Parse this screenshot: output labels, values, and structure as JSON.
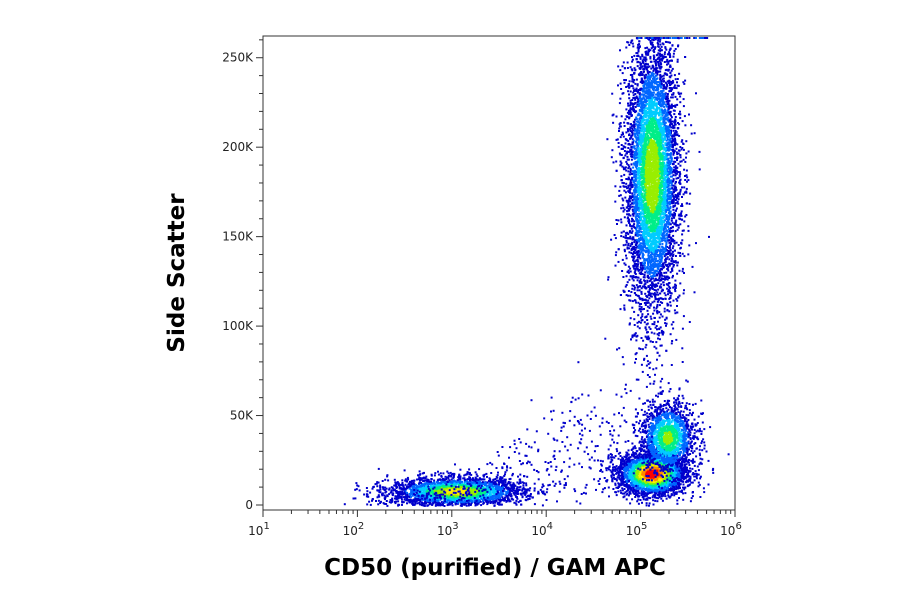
{
  "chart_data": {
    "type": "scatter",
    "subtype": "flow-cytometry density dot plot",
    "xlabel": "CD50 (purified) / GAM APC",
    "ylabel": "Side Scatter",
    "x_scale": "log",
    "x_range": [
      10,
      1000000
    ],
    "x_ticks": [
      {
        "value": 10,
        "base": "10",
        "exp": "1"
      },
      {
        "value": 100,
        "base": "10",
        "exp": "2"
      },
      {
        "value": 1000,
        "base": "10",
        "exp": "3"
      },
      {
        "value": 10000,
        "base": "10",
        "exp": "4"
      },
      {
        "value": 100000,
        "base": "10",
        "exp": "5"
      },
      {
        "value": 1000000,
        "base": "10",
        "exp": "6"
      }
    ],
    "y_scale": "linear",
    "y_range": [
      0,
      262144
    ],
    "y_ticks": [
      {
        "value": 0,
        "label": "0"
      },
      {
        "value": 50000,
        "label": "50K"
      },
      {
        "value": 100000,
        "label": "100K"
      },
      {
        "value": 150000,
        "label": "150K"
      },
      {
        "value": 200000,
        "label": "200K"
      },
      {
        "value": 250000,
        "label": "250K"
      }
    ],
    "grid": false,
    "legend": "none",
    "color_scale": [
      "#0000cc",
      "#0066ff",
      "#00ccff",
      "#00ee88",
      "#99ee00",
      "#ffee00",
      "#ff8800",
      "#ff0000"
    ],
    "populations": [
      {
        "name": "events with high SSC",
        "x_center": 130000,
        "y_center": 185000,
        "x_spread_decades": 0.14,
        "y_spread": 38000,
        "events": 6500,
        "peak_density": 0.62
      },
      {
        "name": "events with low SSC and high APC",
        "x_center": 130000,
        "y_center": 18000,
        "x_spread_decades": 0.18,
        "y_spread": 6000,
        "events": 3200,
        "peak_density": 1.0
      },
      {
        "name": "events with medium SSC and high APC",
        "x_center": 190000,
        "y_center": 38000,
        "x_spread_decades": 0.15,
        "y_spread": 10000,
        "events": 1600,
        "peak_density": 0.55
      },
      {
        "name": "events with low SSC and low APC",
        "x_center": 1100,
        "y_center": 8000,
        "x_spread_decades": 0.35,
        "y_spread": 4000,
        "events": 2600,
        "peak_density": 0.7
      }
    ]
  }
}
